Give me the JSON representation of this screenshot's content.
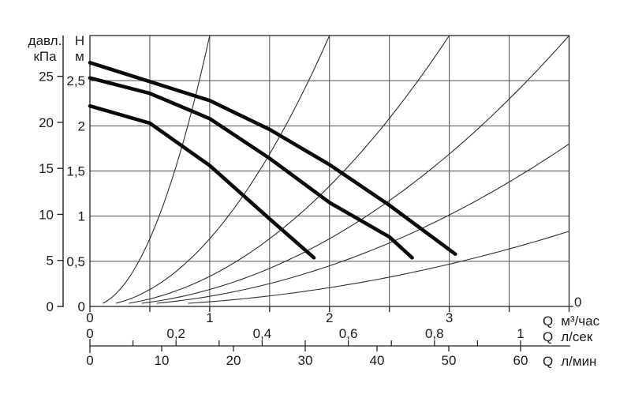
{
  "chart_data": {
    "type": "line",
    "title": "",
    "description_visible_text_only": "",
    "axes": {
      "pressure": {
        "header_lines": [
          "давл.",
          "кПа"
        ],
        "ticks": [
          0,
          5,
          10,
          15,
          20,
          25
        ],
        "tick_labels": [
          "0",
          "5",
          "10",
          "15",
          "20",
          "25"
        ],
        "range": [
          0,
          29.4
        ]
      },
      "head": {
        "header_lines": [
          "Н",
          "м"
        ],
        "ticks": [
          0,
          0.5,
          1,
          1.5,
          2,
          2.5
        ],
        "tick_labels": [
          "0",
          "0,5",
          "1",
          "1,5",
          "2",
          "2,5"
        ],
        "range": [
          0,
          3
        ]
      },
      "flow_m3h": {
        "prefix": "Q",
        "unit": "м³/час",
        "ticks": [
          0,
          1,
          2,
          3
        ],
        "tick_labels": [
          "0",
          "1",
          "2",
          "3"
        ],
        "range": [
          0,
          4
        ],
        "grid_step": 0.5,
        "end_label": "0"
      },
      "flow_ls": {
        "prefix": "Q",
        "unit": "л/сек",
        "ticks": [
          0,
          0.2,
          0.4,
          0.6,
          0.8,
          1
        ],
        "tick_labels": [
          "0",
          "0,2",
          "0,4",
          "0,6",
          "0,8",
          "1"
        ],
        "minor_tick_step": 0.1,
        "range": [
          0,
          1
        ]
      },
      "flow_lmin": {
        "prefix": "Q",
        "unit": "л/мин",
        "ticks": [
          0,
          10,
          20,
          30,
          40,
          50,
          60
        ],
        "tick_labels": [
          "0",
          "10",
          "20",
          "30",
          "40",
          "50",
          "60"
        ],
        "range": [
          0,
          60
        ]
      }
    },
    "pump_curves": [
      {
        "name": "pump-characteristic-1",
        "points": [
          [
            0,
            2.7
          ],
          [
            0.5,
            2.49
          ],
          [
            1.0,
            2.28
          ],
          [
            1.5,
            1.96
          ],
          [
            2.0,
            1.57
          ],
          [
            2.5,
            1.12
          ],
          [
            3.05,
            0.58
          ]
        ]
      },
      {
        "name": "pump-characteristic-2",
        "points": [
          [
            0,
            2.53
          ],
          [
            0.5,
            2.36
          ],
          [
            1.0,
            2.08
          ],
          [
            1.5,
            1.64
          ],
          [
            2.0,
            1.15
          ],
          [
            2.5,
            0.77
          ],
          [
            2.69,
            0.54
          ]
        ]
      },
      {
        "name": "pump-characteristic-3",
        "points": [
          [
            0,
            2.22
          ],
          [
            0.5,
            2.03
          ],
          [
            1.0,
            1.56
          ],
          [
            1.5,
            0.97
          ],
          [
            1.87,
            0.54
          ]
        ]
      }
    ],
    "system_curves": [
      {
        "name": "system-curve-1",
        "coefficient": 3.0
      },
      {
        "name": "system-curve-2",
        "coefficient": 0.75
      },
      {
        "name": "system-curve-3",
        "coefficient": 0.3333
      },
      {
        "name": "system-curve-4",
        "coefficient": 0.1875
      },
      {
        "name": "system-curve-5",
        "coefficient": 0.1125
      },
      {
        "name": "system-curve-6",
        "coefficient": 0.052
      }
    ],
    "grid": {
      "vertical_step_m3h": 0.5,
      "horizontal_step_m": 0.5,
      "grid_on": true,
      "legend": "none"
    },
    "colors": {
      "pump_curve": "#0a0a0a",
      "system_curve": "#2e2e2e",
      "grid": "#4f4f4f",
      "axis": "#262626",
      "text": "#1c1c1c",
      "background": "#ffffff"
    }
  }
}
